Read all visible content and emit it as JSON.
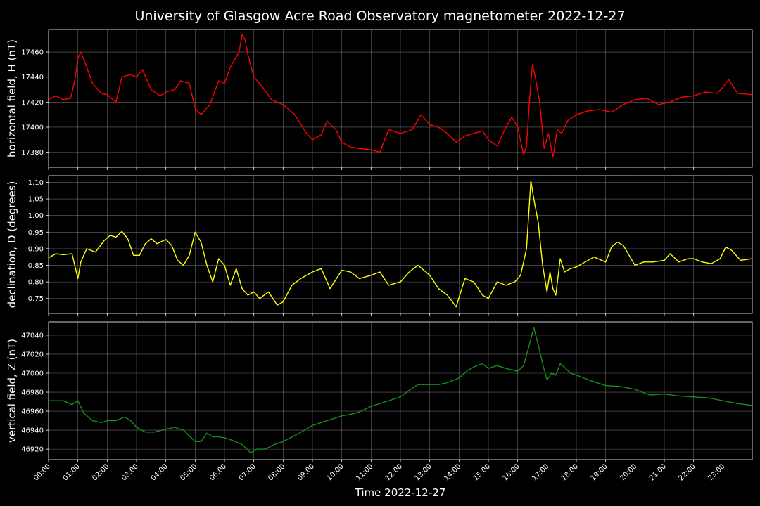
{
  "chart_data": {
    "type": "line",
    "title": "University of Glasgow Acre Road Observatory magnetometer 2022-12-27",
    "xlabel": "Time 2022-12-27",
    "x_ticks": [
      "00:00",
      "01:00",
      "02:00",
      "03:00",
      "04:00",
      "05:00",
      "06:00",
      "07:00",
      "08:00",
      "09:00",
      "10:00",
      "11:00",
      "12:00",
      "13:00",
      "14:00",
      "15:00",
      "16:00",
      "17:00",
      "18:00",
      "19:00",
      "20:00",
      "21:00",
      "22:00",
      "23:00"
    ],
    "xlim_hours": [
      0,
      24
    ],
    "panels": [
      {
        "ylabel": "horizontal field, H (nT)",
        "color": "#ff0000",
        "ylim": [
          17368,
          17478
        ],
        "yticks": [
          17380,
          17400,
          17420,
          17440,
          17460
        ],
        "ytick_labels": [
          "17380",
          "17400",
          "17420",
          "17440",
          "17460"
        ],
        "series": {
          "name": "H",
          "x": [
            0,
            0.25,
            0.5,
            0.75,
            0.9,
            1.0,
            1.1,
            1.3,
            1.5,
            1.8,
            2.0,
            2.3,
            2.5,
            2.8,
            3.0,
            3.2,
            3.5,
            3.8,
            4.0,
            4.3,
            4.5,
            4.8,
            5.0,
            5.2,
            5.5,
            5.8,
            6.0,
            6.2,
            6.5,
            6.6,
            6.7,
            6.8,
            7.0,
            7.3,
            7.6,
            8.0,
            8.4,
            8.8,
            9.0,
            9.3,
            9.5,
            9.8,
            10.0,
            10.3,
            10.6,
            11.0,
            11.3,
            11.6,
            12.0,
            12.4,
            12.7,
            13.0,
            13.3,
            13.6,
            13.9,
            14.2,
            14.5,
            14.8,
            15.0,
            15.3,
            15.6,
            15.8,
            16.0,
            16.2,
            16.3,
            16.4,
            16.5,
            16.6,
            16.75,
            16.9,
            17.05,
            17.2,
            17.35,
            17.5,
            17.7,
            18.0,
            18.4,
            18.8,
            19.2,
            19.6,
            20.0,
            20.4,
            20.8,
            21.2,
            21.6,
            22.0,
            22.4,
            22.8,
            23.0,
            23.2,
            23.5,
            24.0
          ],
          "y": [
            17422,
            17425,
            17422,
            17423,
            17438,
            17455,
            17460,
            17448,
            17435,
            17427,
            17426,
            17420,
            17440,
            17442,
            17440,
            17446,
            17430,
            17425,
            17428,
            17430,
            17437,
            17435,
            17415,
            17410,
            17418,
            17437,
            17435,
            17448,
            17460,
            17474,
            17470,
            17458,
            17440,
            17432,
            17422,
            17418,
            17410,
            17395,
            17390,
            17394,
            17405,
            17398,
            17388,
            17384,
            17383,
            17382,
            17380,
            17398,
            17395,
            17398,
            17410,
            17402,
            17400,
            17395,
            17388,
            17393,
            17395,
            17397,
            17390,
            17385,
            17400,
            17408,
            17400,
            17378,
            17385,
            17420,
            17450,
            17440,
            17420,
            17383,
            17395,
            17376,
            17398,
            17395,
            17405,
            17410,
            17413,
            17414,
            17412,
            17418,
            17422,
            17423,
            17418,
            17420,
            17424,
            17425,
            17428,
            17427,
            17432,
            17438,
            17427,
            17426
          ]
        }
      },
      {
        "ylabel": "declination, D (degrees)",
        "color": "#ffff00",
        "ylim": [
          0.705,
          1.12
        ],
        "yticks": [
          0.75,
          0.8,
          0.85,
          0.9,
          0.95,
          1.0,
          1.05,
          1.1
        ],
        "ytick_labels": [
          "0.75",
          "0.80",
          "0.85",
          "0.90",
          "0.95",
          "1.00",
          "1.05",
          "1.10"
        ],
        "series": {
          "name": "D",
          "x": [
            0,
            0.25,
            0.5,
            0.8,
            1.0,
            1.1,
            1.3,
            1.6,
            1.9,
            2.1,
            2.3,
            2.5,
            2.7,
            2.9,
            3.1,
            3.3,
            3.5,
            3.7,
            4.0,
            4.2,
            4.4,
            4.6,
            4.8,
            5.0,
            5.2,
            5.4,
            5.6,
            5.8,
            6.0,
            6.2,
            6.4,
            6.6,
            6.8,
            7.0,
            7.2,
            7.5,
            7.8,
            8.0,
            8.3,
            8.6,
            9.0,
            9.3,
            9.6,
            10.0,
            10.3,
            10.6,
            11.0,
            11.3,
            11.6,
            12.0,
            12.3,
            12.6,
            13.0,
            13.3,
            13.6,
            13.9,
            14.2,
            14.5,
            14.8,
            15.0,
            15.3,
            15.6,
            15.9,
            16.1,
            16.3,
            16.45,
            16.55,
            16.7,
            16.85,
            17.0,
            17.1,
            17.2,
            17.3,
            17.45,
            17.6,
            17.8,
            18.0,
            18.3,
            18.6,
            19.0,
            19.2,
            19.4,
            19.6,
            19.8,
            20.0,
            20.3,
            20.6,
            21.0,
            21.2,
            21.5,
            21.8,
            22.0,
            22.3,
            22.6,
            22.9,
            23.1,
            23.3,
            23.6,
            24.0
          ],
          "y": [
            0.873,
            0.885,
            0.882,
            0.885,
            0.81,
            0.86,
            0.9,
            0.89,
            0.925,
            0.94,
            0.935,
            0.952,
            0.93,
            0.88,
            0.88,
            0.915,
            0.93,
            0.915,
            0.928,
            0.91,
            0.865,
            0.85,
            0.88,
            0.95,
            0.92,
            0.85,
            0.8,
            0.87,
            0.85,
            0.79,
            0.84,
            0.78,
            0.76,
            0.77,
            0.75,
            0.77,
            0.73,
            0.74,
            0.79,
            0.81,
            0.83,
            0.84,
            0.78,
            0.835,
            0.83,
            0.81,
            0.82,
            0.83,
            0.79,
            0.8,
            0.83,
            0.85,
            0.82,
            0.78,
            0.76,
            0.725,
            0.81,
            0.8,
            0.76,
            0.75,
            0.8,
            0.79,
            0.8,
            0.82,
            0.9,
            1.105,
            1.05,
            0.98,
            0.85,
            0.77,
            0.83,
            0.78,
            0.76,
            0.87,
            0.83,
            0.84,
            0.845,
            0.86,
            0.875,
            0.86,
            0.905,
            0.92,
            0.91,
            0.88,
            0.85,
            0.86,
            0.86,
            0.865,
            0.885,
            0.86,
            0.87,
            0.87,
            0.86,
            0.855,
            0.87,
            0.905,
            0.895,
            0.865,
            0.87
          ]
        }
      },
      {
        "ylabel": "vertical field, Z (nT)",
        "color": "#1a8a1a",
        "ylim": [
          46909,
          47054
        ],
        "yticks": [
          46920,
          46940,
          46960,
          46980,
          47000,
          47020,
          47040
        ],
        "ytick_labels": [
          "46920",
          "46940",
          "46960",
          "46980",
          "47000",
          "47020",
          "47040"
        ],
        "series": {
          "name": "Z",
          "x": [
            0,
            0.5,
            0.8,
            1.0,
            1.2,
            1.5,
            1.8,
            2.0,
            2.3,
            2.6,
            2.8,
            3.0,
            3.3,
            3.6,
            4.0,
            4.3,
            4.6,
            5.0,
            5.2,
            5.4,
            5.6,
            5.8,
            6.0,
            6.3,
            6.6,
            6.9,
            7.1,
            7.4,
            7.7,
            8.0,
            8.5,
            9.0,
            9.5,
            10.0,
            10.5,
            11.0,
            11.5,
            12.0,
            12.3,
            12.6,
            13.0,
            13.3,
            13.6,
            14.0,
            14.3,
            14.6,
            14.8,
            15.0,
            15.3,
            15.6,
            16.0,
            16.2,
            16.4,
            16.55,
            16.7,
            16.85,
            17.0,
            17.15,
            17.3,
            17.45,
            17.6,
            17.8,
            18.0,
            18.5,
            19.0,
            19.5,
            20.0,
            20.5,
            21.0,
            21.5,
            22.0,
            22.5,
            23.0,
            23.5,
            24.0
          ],
          "y": [
            46971,
            46971,
            46967,
            46971,
            46958,
            46950,
            46948,
            46950,
            46950,
            46954,
            46950,
            46943,
            46938,
            46938,
            46941,
            46943,
            46940,
            46928,
            46928,
            46937,
            46933,
            46933,
            46932,
            46929,
            46925,
            46916,
            46920,
            46920,
            46925,
            46928,
            46936,
            46945,
            46950,
            46955,
            46958,
            46965,
            46970,
            46975,
            46982,
            46988,
            46988,
            46988,
            46990,
            46995,
            47003,
            47008,
            47010,
            47005,
            47008,
            47005,
            47002,
            47008,
            47030,
            47048,
            47030,
            47010,
            46993,
            47000,
            46998,
            47010,
            47006,
            47000,
            46998,
            46992,
            46987,
            46986,
            46983,
            46977,
            46978,
            46976,
            46975,
            46974,
            46971,
            46968,
            46966
          ]
        }
      }
    ],
    "grid": true,
    "background": "#000000"
  }
}
